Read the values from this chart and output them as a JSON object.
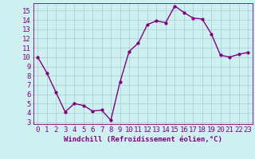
{
  "x": [
    0,
    1,
    2,
    3,
    4,
    5,
    6,
    7,
    8,
    9,
    10,
    11,
    12,
    13,
    14,
    15,
    16,
    17,
    18,
    19,
    20,
    21,
    22,
    23
  ],
  "y": [
    10,
    8.3,
    6.2,
    4.1,
    5.0,
    4.8,
    4.2,
    4.3,
    3.2,
    7.3,
    10.6,
    11.5,
    13.5,
    13.9,
    13.7,
    15.5,
    14.8,
    14.2,
    14.1,
    12.5,
    10.2,
    10.0,
    10.3,
    10.5
  ],
  "line_color": "#800080",
  "marker": "o",
  "marker_size": 2,
  "line_width": 1.0,
  "xlabel": "Windchill (Refroidissement éolien,°C)",
  "ylabel": "",
  "title": "",
  "xlim": [
    -0.5,
    23.5
  ],
  "ylim_min": 2.8,
  "ylim_max": 15.8,
  "yticks": [
    3,
    4,
    5,
    6,
    7,
    8,
    9,
    10,
    11,
    12,
    13,
    14,
    15
  ],
  "xticks": [
    0,
    1,
    2,
    3,
    4,
    5,
    6,
    7,
    8,
    9,
    10,
    11,
    12,
    13,
    14,
    15,
    16,
    17,
    18,
    19,
    20,
    21,
    22,
    23
  ],
  "bg_color": "#cef0f0",
  "grid_color": "#aacccc",
  "tick_label_color": "#800080",
  "xlabel_color": "#800080",
  "font_size": 6.5
}
